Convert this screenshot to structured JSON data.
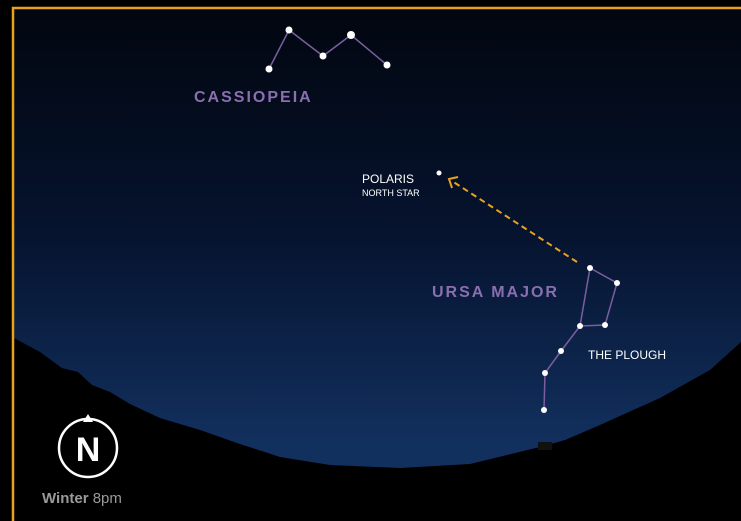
{
  "constellations": [
    {
      "label": "CASSIOPEIA"
    },
    {
      "label": "URSA MAJOR",
      "asterism": "THE PLOUGH"
    }
  ],
  "star": {
    "name": "POLARIS",
    "subtitle": "NORTH STAR"
  },
  "compass": "N",
  "season": "Winter",
  "time": "8pm"
}
